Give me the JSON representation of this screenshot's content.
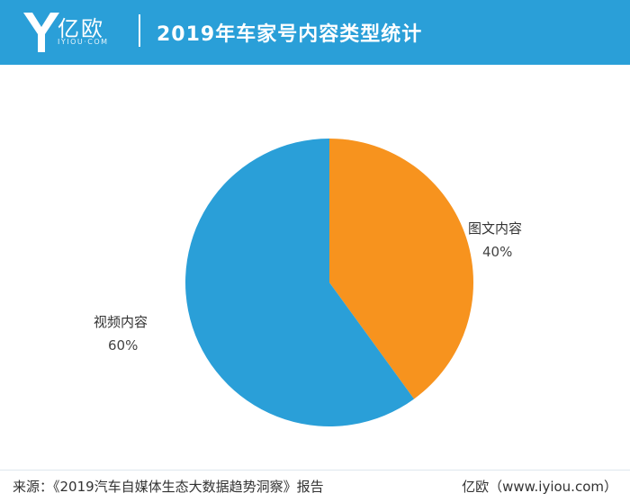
{
  "header": {
    "logo_text": "亿欧",
    "logo_subtext": "IYIOU·COM",
    "title": "2019年车家号内容类型统计"
  },
  "colors": {
    "header_bg": "#2a9fd8",
    "video": "#2a9fd8",
    "graphic": "#f7931e"
  },
  "chart_data": {
    "type": "pie",
    "title": "2019年车家号内容类型统计",
    "slices": [
      {
        "label": "图文内容",
        "value": 40,
        "value_label": "40%",
        "color": "#f7931e"
      },
      {
        "label": "视频内容",
        "value": 60,
        "value_label": "60%",
        "color": "#2a9fd8"
      }
    ],
    "start": "12 o'clock",
    "direction": "clockwise"
  },
  "footer": {
    "source": "来源：《2019汽车自媒体生态大数据趋势洞察》报告",
    "credit": "亿欧（www.iyiou.com）"
  }
}
